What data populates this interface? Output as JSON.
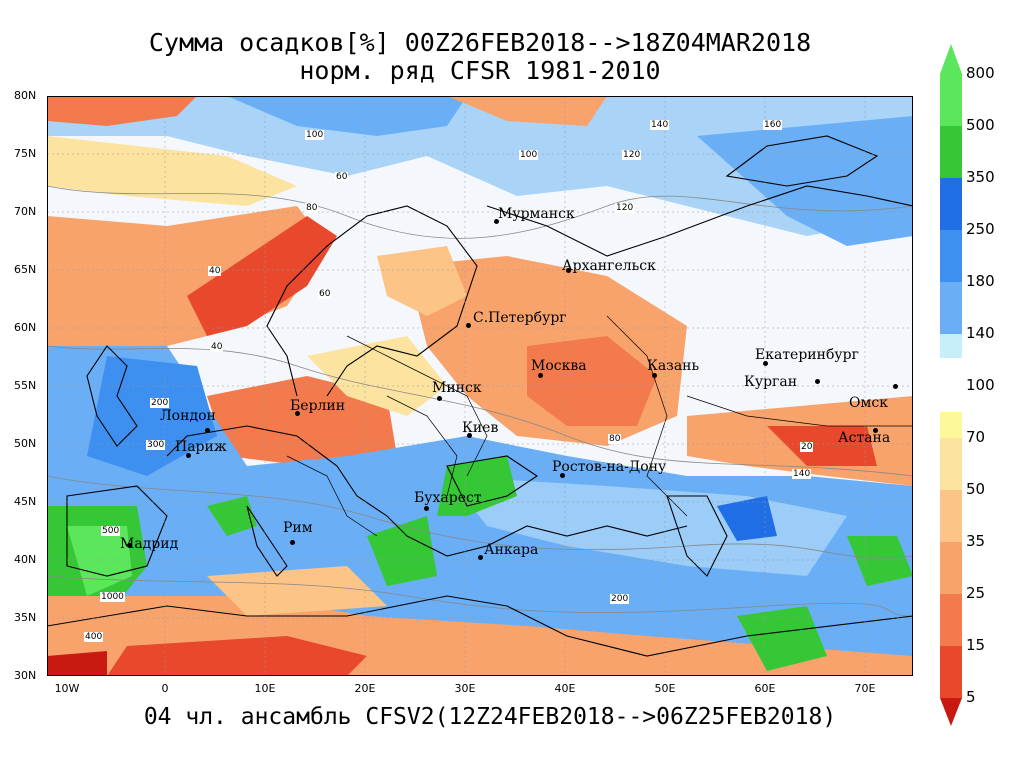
{
  "title_line1": "Сумма осадков[%] 00Z26FEB2018-->18Z04MAR2018",
  "title_line2": "норм. ряд CFSR 1981-2010",
  "footer": "04 чл. ансамбль CFSV2(12Z24FEB2018-->06Z25FEB2018)",
  "lat_labels": [
    "80N",
    "75N",
    "70N",
    "65N",
    "60N",
    "55N",
    "50N",
    "45N",
    "40N",
    "35N",
    "30N"
  ],
  "lon_labels": [
    "10W",
    "0",
    "10E",
    "20E",
    "30E",
    "40E",
    "50E",
    "60E",
    "70E"
  ],
  "colorbar": {
    "labels": [
      "800",
      "500",
      "350",
      "250",
      "180",
      "140",
      "100",
      "70",
      "50",
      "35",
      "25",
      "15",
      "5"
    ],
    "upper_colors": [
      "#5be65b",
      "#36c736",
      "#1ea51e",
      "#1f6ee6",
      "#3d8ff0",
      "#6aaef5",
      "#9bcdf8",
      "#c6eefb"
    ],
    "lower_colors": [
      "#fdf89a",
      "#fde3a0",
      "#fcc486",
      "#f9a36c",
      "#f37a4d",
      "#e8492c",
      "#c81a10"
    ]
  },
  "cities": [
    {
      "name": "Мурманск"
    },
    {
      "name": "Архангельск"
    },
    {
      "name": "С.Петербург"
    },
    {
      "name": "Москва"
    },
    {
      "name": "Казань"
    },
    {
      "name": "Екатеринбург"
    },
    {
      "name": "Курган"
    },
    {
      "name": "Омск"
    },
    {
      "name": "Астана"
    },
    {
      "name": "Минск"
    },
    {
      "name": "Берлин"
    },
    {
      "name": "Лондон"
    },
    {
      "name": "Париж"
    },
    {
      "name": "Киев"
    },
    {
      "name": "Ростов-на-Дону"
    },
    {
      "name": "Бухарест"
    },
    {
      "name": "Рим"
    },
    {
      "name": "Мадрид"
    },
    {
      "name": "Анкара"
    }
  ],
  "contour_labels": [
    "100",
    "140",
    "120",
    "160",
    "80",
    "60",
    "40",
    "20",
    "200",
    "300",
    "400",
    "500",
    "1000",
    "140",
    "100",
    "120",
    "60",
    "80",
    "40",
    "200"
  ]
}
